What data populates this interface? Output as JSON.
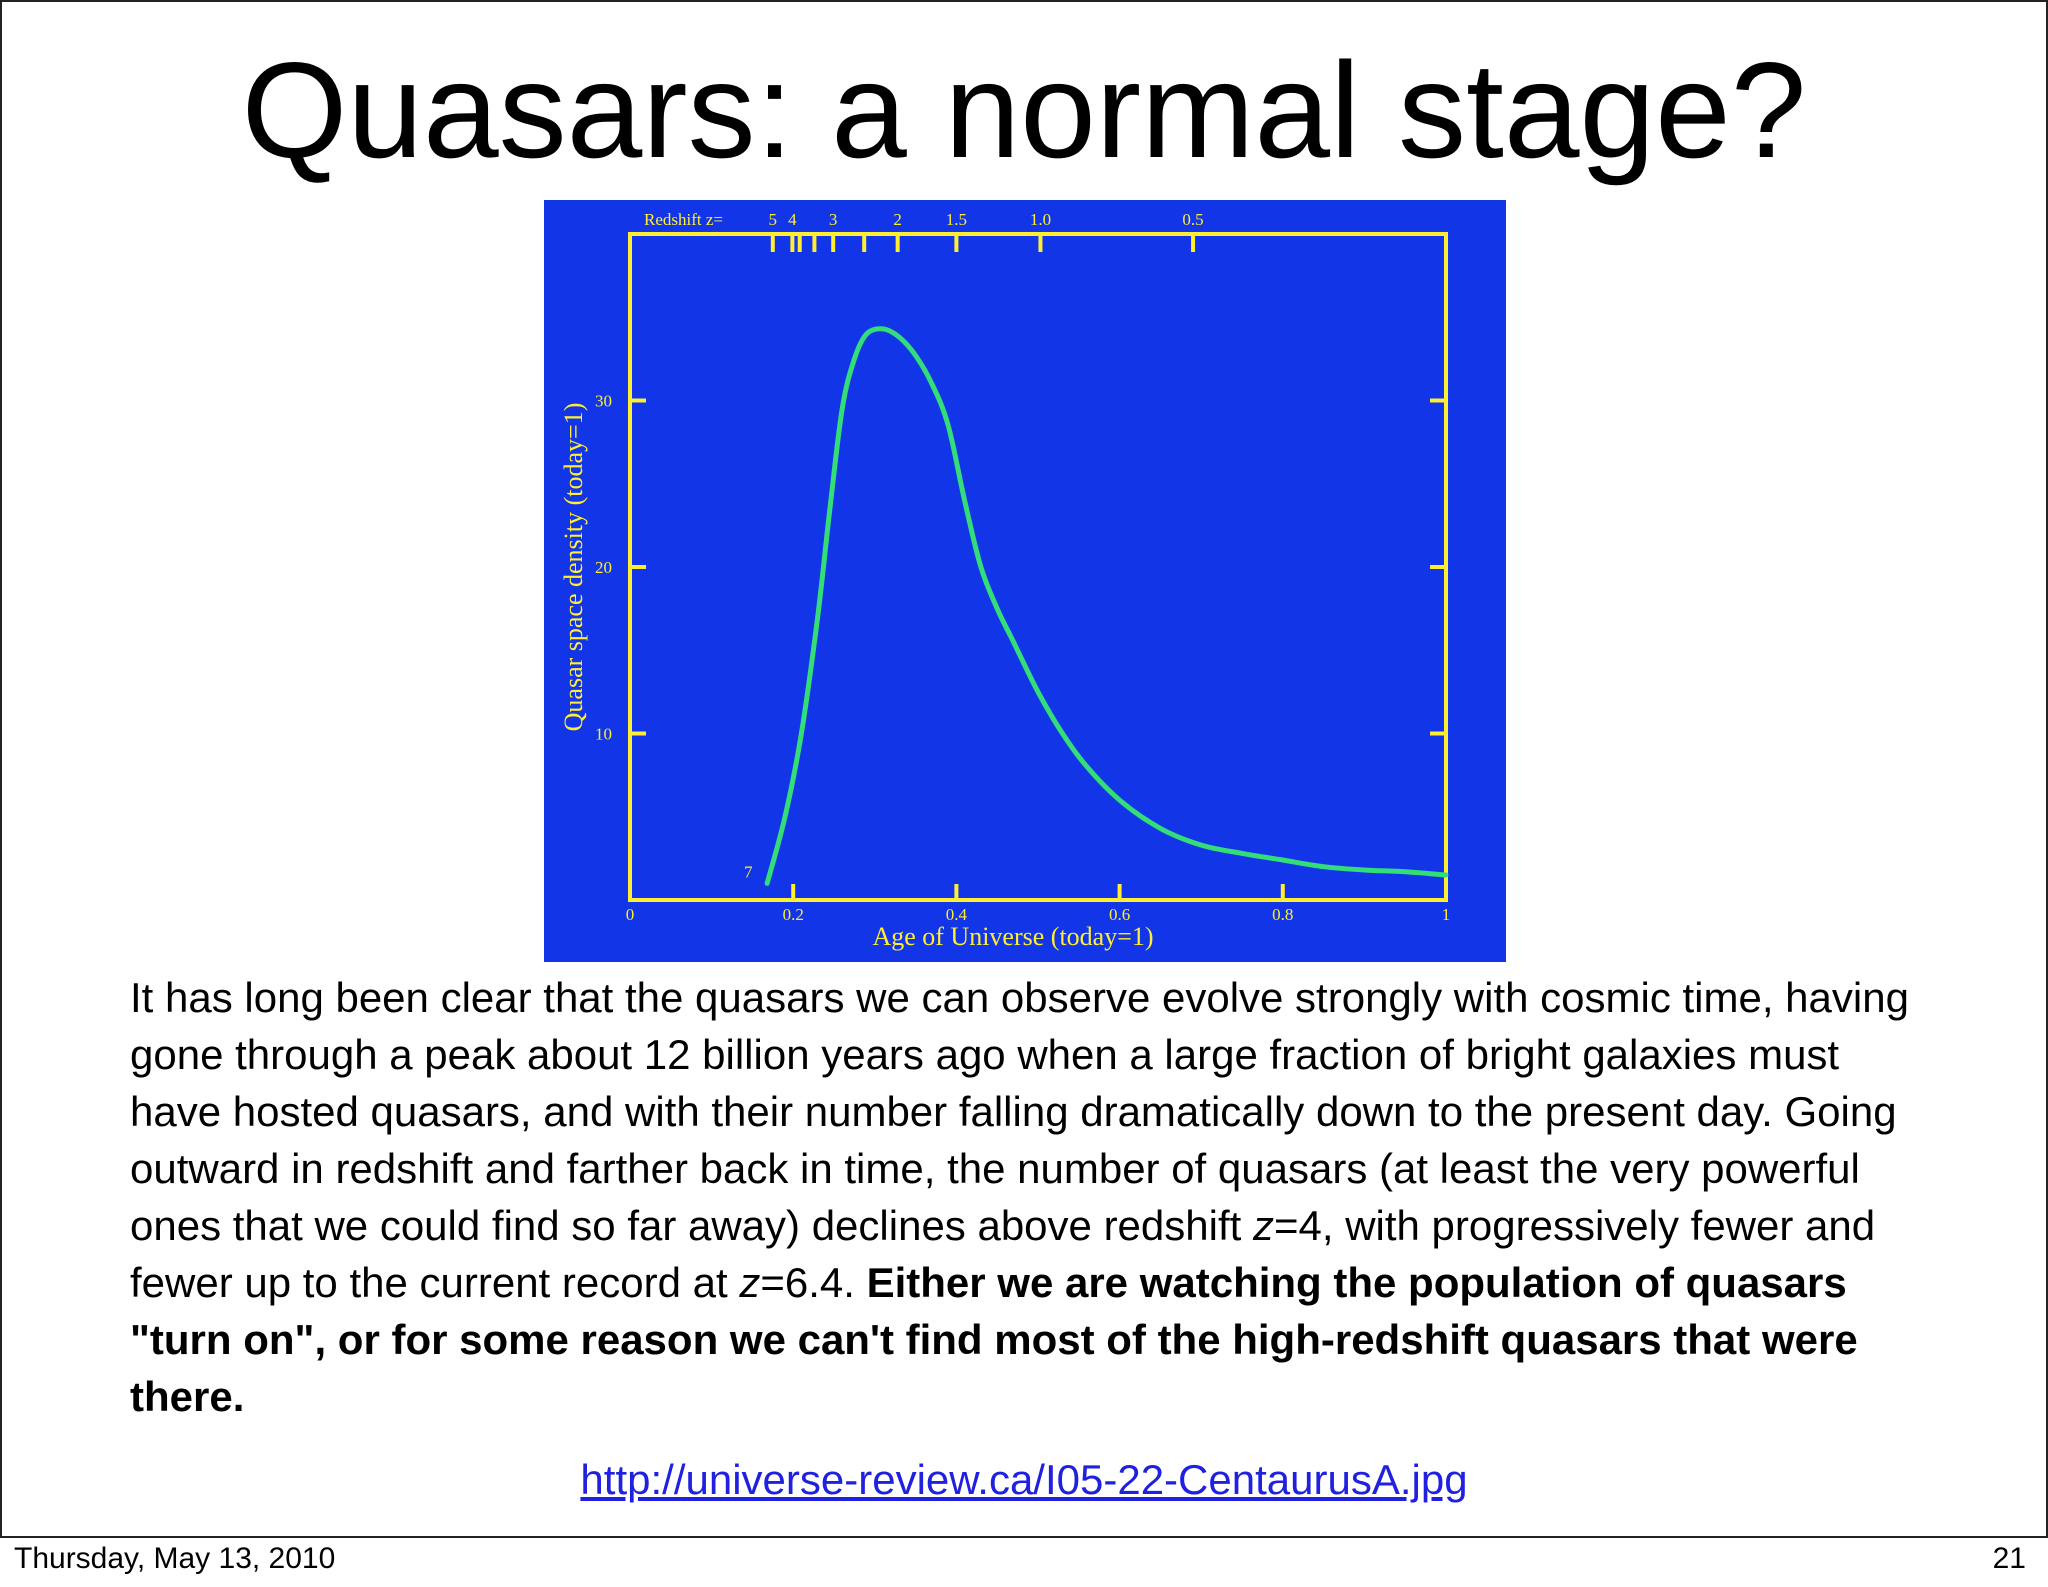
{
  "slide": {
    "title": "Quasars: a normal stage?",
    "body": {
      "p1": "It has long been clear that the quasars we can observe evolve strongly with cosmic time, having gone through a peak about 12 billion years ago when a large fraction of bright galaxies must have hosted quasars, and with their number falling dramatically down to the present day. Going outward in redshift and farther back in time, the number of quasars (at least the very powerful ones that we could find so far away) declines above redshift ",
      "z1": "z",
      "p2": "=4, with progressively fewer and fewer up to the current record at ",
      "z2": "z",
      "p3": "=6.4. ",
      "bold": "Either we are watching the population of quasars \"turn on\", or for some reason we can't find most of the high-redshift quasars that were there."
    },
    "link": "http://universe-review.ca/I05-22-CentaurusA.jpg"
  },
  "footer": {
    "date": "Thursday, May 13, 2010",
    "page": "21"
  },
  "colors": {
    "chart_background": "#1235e8",
    "axis": "#ffee33",
    "curve": "#33dd77",
    "link": "#2020e0"
  },
  "chart_data": {
    "type": "line",
    "xlabel": "Age of Universe (today=1)",
    "ylabel": "Quasar space density (today=1)",
    "xlim": [
      0,
      1
    ],
    "ylim": [
      0,
      40
    ],
    "x_ticks": [
      0,
      0.2,
      0.4,
      0.6,
      0.8,
      1
    ],
    "x_tick_labels": [
      "0",
      "0.2",
      "0.4",
      "0.6",
      "0.8",
      "1"
    ],
    "y_ticks": [
      10,
      20,
      30
    ],
    "y_tick_labels": [
      "10",
      "20",
      "30"
    ],
    "top_axis": {
      "label": "Redshift z=",
      "ticks": [
        {
          "z": "5",
          "x": 0.175
        },
        {
          "z": "4",
          "x": 0.199
        },
        {
          "z": "",
          "x": 0.208
        },
        {
          "z": "",
          "x": 0.226
        },
        {
          "z": "3",
          "x": 0.249
        },
        {
          "z": "",
          "x": 0.287
        },
        {
          "z": "2",
          "x": 0.328
        },
        {
          "z": "1.5",
          "x": 0.4
        },
        {
          "z": "1.0",
          "x": 0.503
        },
        {
          "z": "0.5",
          "x": 0.69
        }
      ]
    },
    "annotations": [
      {
        "text": "7",
        "x": 0.155,
        "y": 1.0
      }
    ],
    "grid": false,
    "series": [
      {
        "x": [
          0.168,
          0.19,
          0.21,
          0.23,
          0.245,
          0.26,
          0.275,
          0.29,
          0.31,
          0.33,
          0.35,
          0.37,
          0.39,
          0.41,
          0.43,
          0.45,
          0.47,
          0.5,
          0.53,
          0.56,
          0.6,
          0.65,
          0.7,
          0.75,
          0.8,
          0.85,
          0.9,
          0.95,
          1.0
        ],
        "y": [
          1.0,
          5.0,
          10.0,
          17.0,
          23.5,
          29.5,
          32.5,
          34.0,
          34.3,
          33.8,
          32.7,
          31.0,
          28.5,
          24.0,
          20.0,
          17.5,
          15.5,
          12.5,
          10.0,
          8.0,
          6.0,
          4.3,
          3.3,
          2.8,
          2.4,
          2.0,
          1.8,
          1.7,
          1.5
        ]
      }
    ]
  }
}
